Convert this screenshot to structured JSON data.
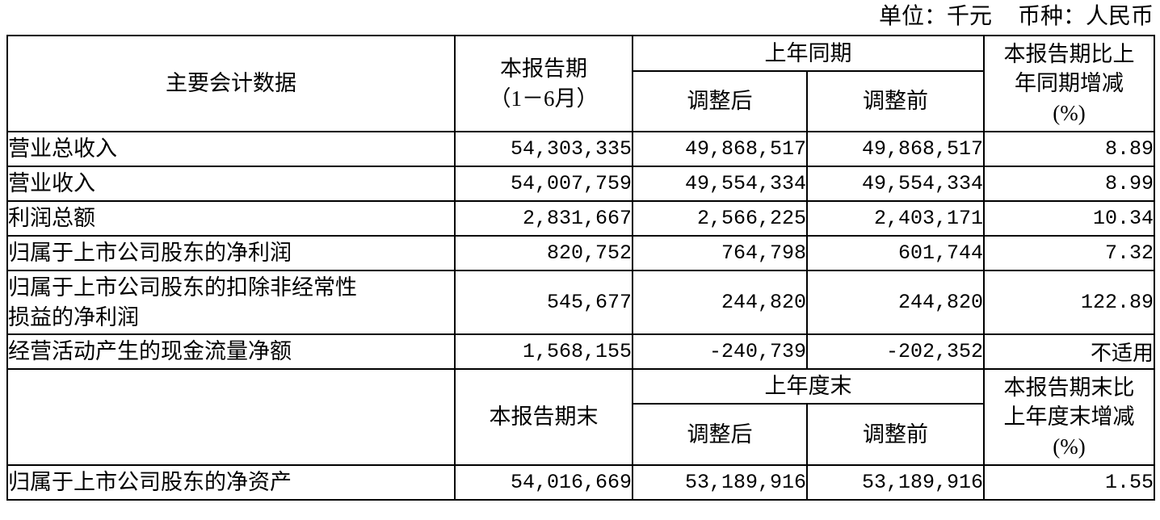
{
  "page": {
    "unit_note": "单位：千元",
    "currency_note": "币种：人民币"
  },
  "table": {
    "header_period": {
      "main": "主要会计数据",
      "current": "本报告期\n（1－6月）",
      "prior_group": "上年同期",
      "adjusted": "调整后",
      "before_adjustment": "调整前",
      "change": "本报告期比上\n年同期增减\n(%)"
    },
    "rows": [
      {
        "label": "营业总收入",
        "current": "54,303,335",
        "adjusted": "49,868,517",
        "before": "49,868,517",
        "change": "8.89"
      },
      {
        "label": "营业收入",
        "current": "54,007,759",
        "adjusted": "49,554,334",
        "before": "49,554,334",
        "change": "8.99"
      },
      {
        "label": "利润总额",
        "current": "2,831,667",
        "adjusted": "2,566,225",
        "before": "2,403,171",
        "change": "10.34"
      },
      {
        "label": "归属于上市公司股东的净利润",
        "current": "820,752",
        "adjusted": "764,798",
        "before": "601,744",
        "change": "7.32"
      },
      {
        "label": "归属于上市公司股东的扣除非经常性\n损益的净利润",
        "current": "545,677",
        "adjusted": "244,820",
        "before": "244,820",
        "change": "122.89"
      },
      {
        "label": "经营活动产生的现金流量净额",
        "current": "1,568,155",
        "adjusted": "-240,739",
        "before": "-202,352",
        "change": "不适用"
      }
    ],
    "header_eop": {
      "current": "本报告期末",
      "prior_group": "上年度末",
      "adjusted": "调整后",
      "before_adjustment": "调整前",
      "change": "本报告期末比\n上年度末增减\n(%)"
    },
    "rows_eop": [
      {
        "label": "归属于上市公司股东的净资产",
        "current": "54,016,669",
        "adjusted": "53,189,916",
        "before": "53,189,916",
        "change": "1.55"
      }
    ]
  }
}
